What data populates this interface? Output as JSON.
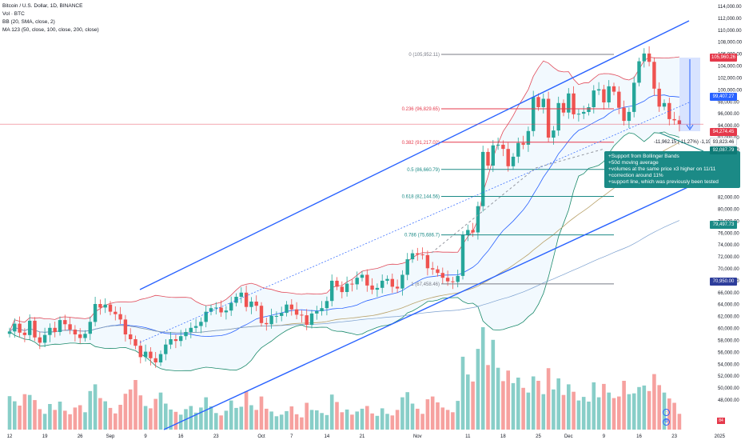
{
  "legend": {
    "line1": "Bitcoin / U.S. Dollar, 1D, BINANCE",
    "line2": "Vol · BTC",
    "line3": "BB (20, SMA, close, 2)",
    "line4": "MA 123 (50, close, 100, close, 200, close)"
  },
  "note": {
    "lines": [
      "+Support from Bollinger Bands",
      "+50d moving average",
      "+volumes at the same price x3 higher on 11/11",
      "+correction around 11%",
      "+support line, which was previously been tested"
    ]
  },
  "measure_label": "-11,962.15 (-11.27%) -1,196",
  "price_tags": {
    "high": "105,960.26",
    "bb_upper": "99,407.27",
    "current": "94,274.45",
    "low": "93,823.46",
    "bb_lower": "92,087.79",
    "ma200": "79,497.73",
    "ma_blue": "70,950.00"
  },
  "badge": "84",
  "chart_data": {
    "type": "candlestick",
    "title": "Bitcoin / U.S. Dollar, 1D, BINANCE",
    "ylim": [
      46000,
      114000
    ],
    "y_ticks": [
      48000,
      50000,
      52000,
      54000,
      56000,
      58000,
      60000,
      62000,
      64000,
      66000,
      68000,
      70000,
      72000,
      74000,
      76000,
      78000,
      80000,
      82000,
      84000,
      86000,
      88000,
      90000,
      92000,
      94000,
      96000,
      98000,
      100000,
      102000,
      104000,
      106000,
      108000,
      110000,
      112000,
      114000
    ],
    "y_tick_labels": [
      "48,000.00",
      "50,000.00",
      "52,000.00",
      "54,000.00",
      "56,000.00",
      "58,000.00",
      "60,000.00",
      "62,000.00",
      "64,000.00",
      "66,000.00",
      "68,000.00",
      "70,000.00",
      "72,000.00",
      "74,000.00",
      "76,000.00",
      "78,000.00",
      "80,000.00",
      "82,000.00",
      "84,000.00",
      "86,000.00",
      "88,000.00",
      "90,000.00",
      "92,000.00",
      "94,000.00",
      "96,000.00",
      "98,000.00",
      "100,000.00",
      "102,000.00",
      "104,000.00",
      "106,000.00",
      "108,000.00",
      "110,000.00",
      "112,000.00",
      "114,000.00"
    ],
    "x_ticks": [
      {
        "day": 0,
        "label": "12"
      },
      {
        "day": 7,
        "label": "19"
      },
      {
        "day": 14,
        "label": "26"
      },
      {
        "day": 20,
        "label": "Sep"
      },
      {
        "day": 27,
        "label": "9"
      },
      {
        "day": 34,
        "label": "16"
      },
      {
        "day": 41,
        "label": "23"
      },
      {
        "day": 50,
        "label": "Oct"
      },
      {
        "day": 56,
        "label": "7"
      },
      {
        "day": 63,
        "label": "14"
      },
      {
        "day": 70,
        "label": "21"
      },
      {
        "day": 81,
        "label": "Nov"
      },
      {
        "day": 91,
        "label": "11"
      },
      {
        "day": 98,
        "label": "18"
      },
      {
        "day": 105,
        "label": "25"
      },
      {
        "day": 111,
        "label": "Dec"
      },
      {
        "day": 118,
        "label": "9"
      },
      {
        "day": 125,
        "label": "16"
      },
      {
        "day": 132,
        "label": "23"
      },
      {
        "day": 141,
        "label": "2025"
      }
    ],
    "closes": [
      59500,
      60800,
      59300,
      58900,
      61300,
      58500,
      57600,
      58900,
      60100,
      59400,
      61400,
      60700,
      59800,
      59000,
      58400,
      59100,
      61100,
      64100,
      63500,
      64000,
      62800,
      62400,
      61500,
      59000,
      58200,
      57100,
      55200,
      56100,
      55000,
      54300,
      55700,
      57300,
      58200,
      57900,
      58700,
      59400,
      60100,
      60400,
      61100,
      62800,
      63400,
      63500,
      62700,
      63000,
      64300,
      65300,
      66000,
      63600,
      64500,
      63800,
      60900,
      60700,
      62100,
      62100,
      62600,
      64000,
      63200,
      62300,
      62200,
      60600,
      62500,
      62900,
      63400,
      64600,
      68000,
      67000,
      66100,
      67500,
      67400,
      68500,
      69000,
      67200,
      66500,
      66800,
      68000,
      68300,
      67000,
      66700,
      69000,
      71600,
      72600,
      72400,
      72300,
      70100,
      69900,
      69300,
      68500,
      67900,
      67800,
      68800,
      75700,
      76500,
      76100,
      80500,
      89600,
      87300,
      90700,
      90800,
      90100,
      87200,
      88800,
      91100,
      90800,
      93100,
      98800,
      97100,
      98500,
      92000,
      93200,
      97800,
      96200,
      99400,
      95900,
      96000,
      96300,
      97100,
      99900,
      100100,
      97900,
      100600,
      99700,
      97000,
      94800,
      96300,
      101200,
      104800,
      106100,
      104700,
      100200,
      97200,
      97800,
      95100,
      94900,
      94250
    ],
    "volumes": [
      8.5,
      7.2,
      6.1,
      9.0,
      8.8,
      7.5,
      5.2,
      4.0,
      6.5,
      5.0,
      7.1,
      4.8,
      3.9,
      5.6,
      6.2,
      4.4,
      9.8,
      11.5,
      8.0,
      7.2,
      5.5,
      4.1,
      6.3,
      9.1,
      10.2,
      12.6,
      8.7,
      6.0,
      5.4,
      7.8,
      9.4,
      6.6,
      5.1,
      4.5,
      3.8,
      5.2,
      6.0,
      4.3,
      5.6,
      8.2,
      5.9,
      4.2,
      3.6,
      4.8,
      7.4,
      5.5,
      5.8,
      9.7,
      6.2,
      5.0,
      8.4,
      5.3,
      4.6,
      3.4,
      3.8,
      4.7,
      5.9,
      3.9,
      3.1,
      6.8,
      5.0,
      4.9,
      4.2,
      3.7,
      8.9,
      7.0,
      4.4,
      5.1,
      3.8,
      4.6,
      5.3,
      6.0,
      4.1,
      3.5,
      5.4,
      4.0,
      3.6,
      5.0,
      8.2,
      9.5,
      6.6,
      5.3,
      4.0,
      7.7,
      8.4,
      6.9,
      5.6,
      5.0,
      4.4,
      7.3,
      18.5,
      14.0,
      12.2,
      20.5,
      26.0,
      16.4,
      22.8,
      15.7,
      12.3,
      15.0,
      11.8,
      13.2,
      10.6,
      9.4,
      13.5,
      12.4,
      9.0,
      15.6,
      10.2,
      13.0,
      8.8,
      11.5,
      9.6,
      7.4,
      8.3,
      7.1,
      12.0,
      8.2,
      11.6,
      9.4,
      8.0,
      8.4,
      12.4,
      9.0,
      9.2,
      10.8,
      11.2,
      9.8,
      14.1,
      11.3,
      9.4,
      7.9,
      6.8,
      4.0
    ],
    "fib_levels": [
      {
        "ratio": "0",
        "label": "0 (105,952.11)",
        "price": 105952.11
      },
      {
        "ratio": "0.236",
        "label": "0.236 (96,829.65)",
        "price": 96829.65
      },
      {
        "ratio": "0.382",
        "label": "0.382 (91,217.02)",
        "price": 91217.02
      },
      {
        "ratio": "0.5",
        "label": "0.5 (86,660.79)",
        "price": 86660.79
      },
      {
        "ratio": "0.618",
        "label": "0.618 (82,144.56)",
        "price": 82144.56
      },
      {
        "ratio": "0.786",
        "label": "0.786 (75,686.7)",
        "price": 75686.7
      },
      {
        "ratio": "1",
        "label": "1 (67,458.46)",
        "price": 67458.46
      }
    ],
    "grid": false,
    "legend_position": "top-left"
  }
}
